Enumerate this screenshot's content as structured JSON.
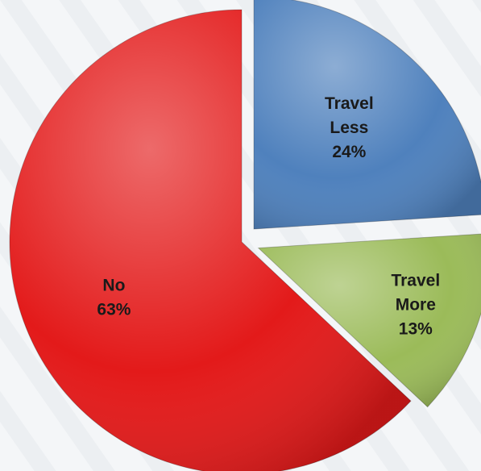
{
  "chart_data": {
    "type": "pie",
    "title": "",
    "slices": [
      {
        "name": "Travel Less",
        "lines": [
          "Travel",
          "Less",
          "24%"
        ],
        "value": 24,
        "color": "#4f81bd",
        "exploded": true
      },
      {
        "name": "Travel More",
        "lines": [
          "Travel",
          "More",
          "13%"
        ],
        "value": 13,
        "color": "#9bbb59",
        "exploded": true
      },
      {
        "name": "No",
        "lines": [
          "No",
          "63%"
        ],
        "value": 63,
        "color": "#e31a1a",
        "exploded": false
      }
    ],
    "legend": "none",
    "data_labels": "inside"
  }
}
